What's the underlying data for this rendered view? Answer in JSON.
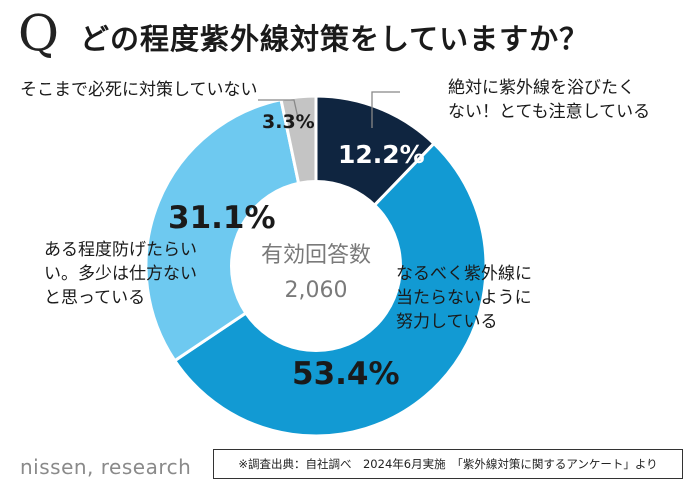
{
  "header": {
    "q_letter": "Q",
    "title": "どの程度紫外線対策をしていますか？"
  },
  "chart_data": {
    "type": "pie",
    "style": "donut",
    "center_label": "有効回答数",
    "center_value": "2,060",
    "slices": [
      {
        "label_lines": [
          "絶対に紫外線を浴びたく",
          "ない！とても注意している"
        ],
        "value": 12.2,
        "display": "12.2%",
        "color": "#0f2540"
      },
      {
        "label_lines": [
          "なるべく紫外線に",
          "当たらないように",
          "努力している"
        ],
        "value": 53.4,
        "display": "53.4%",
        "color": "#129ad3"
      },
      {
        "label_lines": [
          "ある程度防げたらい",
          "い。多少は仕方ない",
          "と思っている"
        ],
        "value": 31.1,
        "display": "31.1%",
        "color": "#6ec9f0"
      },
      {
        "label_lines": [
          "そこまで必死に対策していない"
        ],
        "value": 3.3,
        "display": "3.3%",
        "color": "#c4c4c4"
      }
    ]
  },
  "footer": {
    "logo": "nissen, research",
    "source": "※調査出典：自社調べ　2024年6月実施　「紫外線対策に関するアンケート」より"
  }
}
